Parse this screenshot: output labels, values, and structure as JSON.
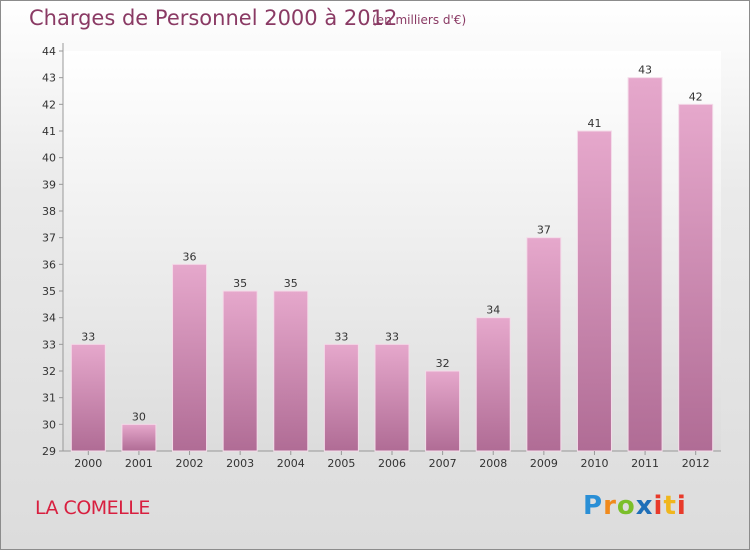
{
  "chart_data": {
    "type": "bar",
    "title": "Charges de Personnel 2000 à 2012",
    "subtitle": "(en milliers d'€)",
    "categories": [
      "2000",
      "2001",
      "2002",
      "2003",
      "2004",
      "2005",
      "2006",
      "2007",
      "2008",
      "2009",
      "2010",
      "2011",
      "2012"
    ],
    "values": [
      33,
      30,
      36,
      35,
      35,
      33,
      33,
      32,
      34,
      37,
      41,
      43,
      42
    ],
    "xlabel": "",
    "ylabel": "",
    "ylim": [
      29,
      44
    ],
    "yticks": [
      29,
      30,
      31,
      32,
      33,
      34,
      35,
      36,
      37,
      38,
      39,
      40,
      41,
      42,
      43,
      44
    ],
    "grid": false,
    "bar_color": "#c97aa6"
  },
  "footer": {
    "commune": "LA COMELLE",
    "brand": "Proxiti"
  }
}
